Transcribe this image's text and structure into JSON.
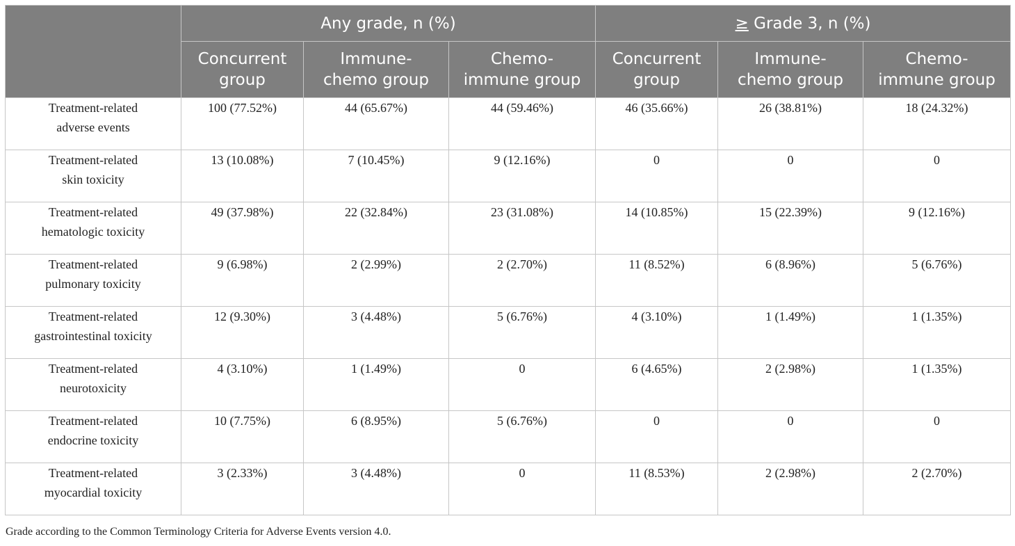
{
  "table": {
    "group_headers": {
      "any_grade": "Any grade, n (%)",
      "grade3_symbol": "≥",
      "grade3_rest": " Grade 3, n (%)"
    },
    "sub_headers": {
      "concurrent": [
        "Concurrent",
        "group"
      ],
      "immune_chemo": [
        "Immune-",
        "chemo group"
      ],
      "chemo_immune": [
        "Chemo-",
        "immune group"
      ]
    },
    "rows": [
      {
        "label": [
          "Treatment-related",
          "adverse events"
        ],
        "values": [
          "100 (77.52%)",
          "44 (65.67%)",
          "44 (59.46%)",
          "46 (35.66%)",
          "26 (38.81%)",
          "18 (24.32%)"
        ]
      },
      {
        "label": [
          "Treatment-related",
          "skin toxicity"
        ],
        "values": [
          "13 (10.08%)",
          "7 (10.45%)",
          "9 (12.16%)",
          "0",
          "0",
          "0"
        ]
      },
      {
        "label": [
          "Treatment-related",
          "hematologic toxicity"
        ],
        "values": [
          "49 (37.98%)",
          "22 (32.84%)",
          "23 (31.08%)",
          "14 (10.85%)",
          "15 (22.39%)",
          "9 (12.16%)"
        ]
      },
      {
        "label": [
          "Treatment-related",
          "pulmonary toxicity"
        ],
        "values": [
          "9 (6.98%)",
          "2 (2.99%)",
          "2 (2.70%)",
          "11 (8.52%)",
          "6 (8.96%)",
          "5 (6.76%)"
        ]
      },
      {
        "label": [
          "Treatment-related",
          "gastrointestinal toxicity"
        ],
        "values": [
          "12 (9.30%)",
          "3 (4.48%)",
          "5 (6.76%)",
          "4 (3.10%)",
          "1 (1.49%)",
          "1 (1.35%)"
        ]
      },
      {
        "label": [
          "Treatment-related",
          "neurotoxicity"
        ],
        "values": [
          "4 (3.10%)",
          "1 (1.49%)",
          "0",
          "6 (4.65%)",
          "2 (2.98%)",
          "1 (1.35%)"
        ]
      },
      {
        "label": [
          "Treatment-related",
          "endocrine toxicity"
        ],
        "values": [
          "10 (7.75%)",
          "6 (8.95%)",
          "5 (6.76%)",
          "0",
          "0",
          "0"
        ]
      },
      {
        "label": [
          "Treatment-related",
          "myocardial toxicity"
        ],
        "values": [
          "3 (2.33%)",
          "3 (4.48%)",
          "0",
          "11 (8.53%)",
          "2 (2.98%)",
          "2 (2.70%)"
        ]
      }
    ]
  },
  "footnote": "Grade according to the Common Terminology Criteria for Adverse Events version 4.0.",
  "colors": {
    "header_bg": "#7f7f7f",
    "header_text": "#ffffff",
    "border": "#c6c6c6",
    "body_text": "#222222"
  }
}
